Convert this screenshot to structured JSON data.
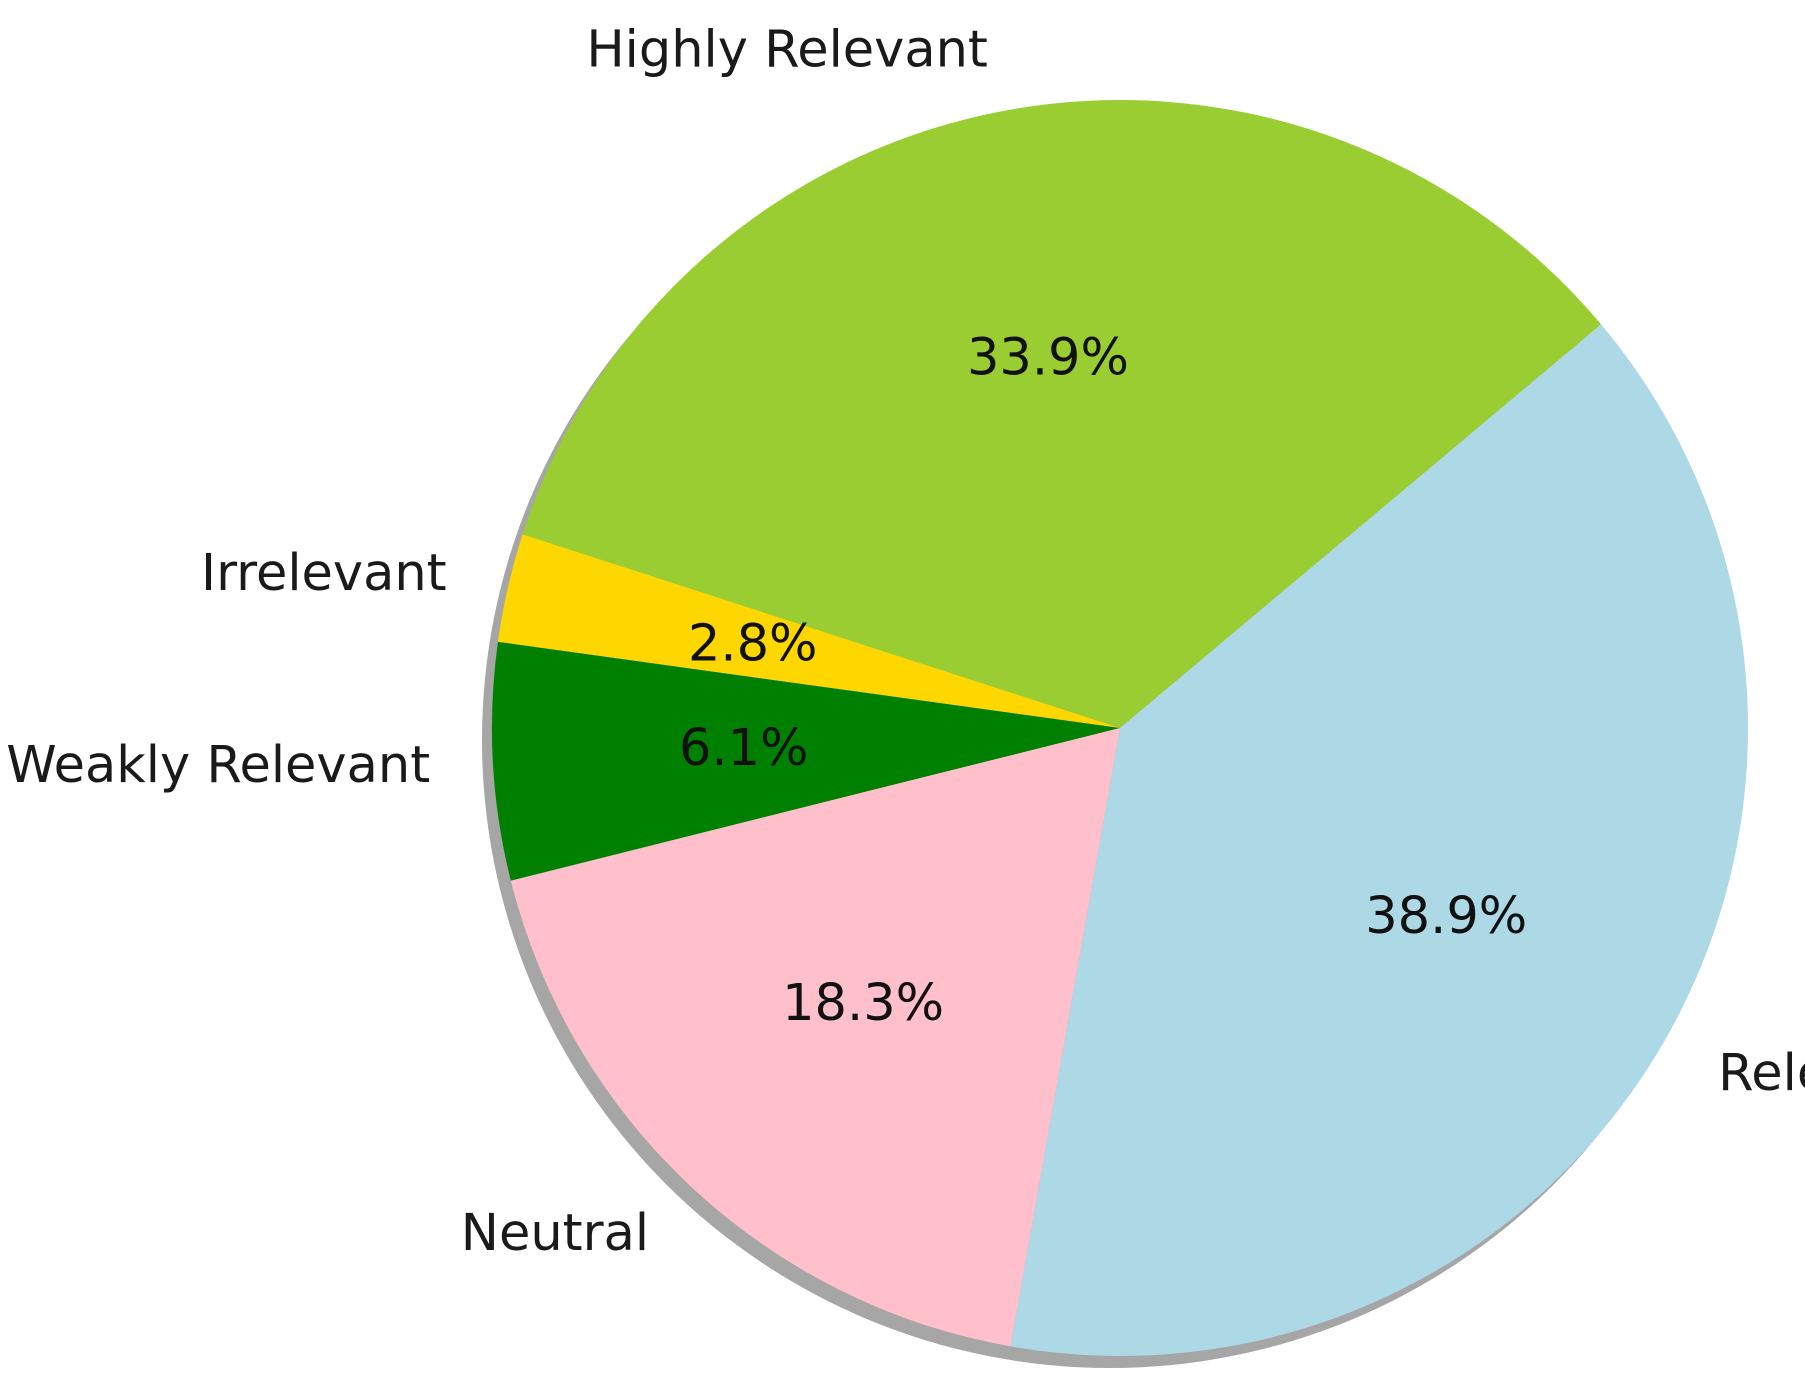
{
  "chart_data": {
    "type": "pie",
    "title": "",
    "shadow": true,
    "start_angle_deg": 40,
    "direction": "counterclockwise",
    "slices": [
      {
        "label": "Highly Relevant",
        "value": 33.9,
        "pct_label": "33.9%",
        "color": "#9ACD32"
      },
      {
        "label": "Irrelevant",
        "value": 2.8,
        "pct_label": "2.8%",
        "color": "#FFD700"
      },
      {
        "label": "Weakly Relevant",
        "value": 6.1,
        "pct_label": "6.1%",
        "color": "#008000"
      },
      {
        "label": "Neutral",
        "value": 18.3,
        "pct_label": "18.3%",
        "color": "#FFC0CB"
      },
      {
        "label": "Relevant",
        "value": 38.9,
        "pct_label": "38.9%",
        "color": "#ADD8E6"
      }
    ]
  }
}
